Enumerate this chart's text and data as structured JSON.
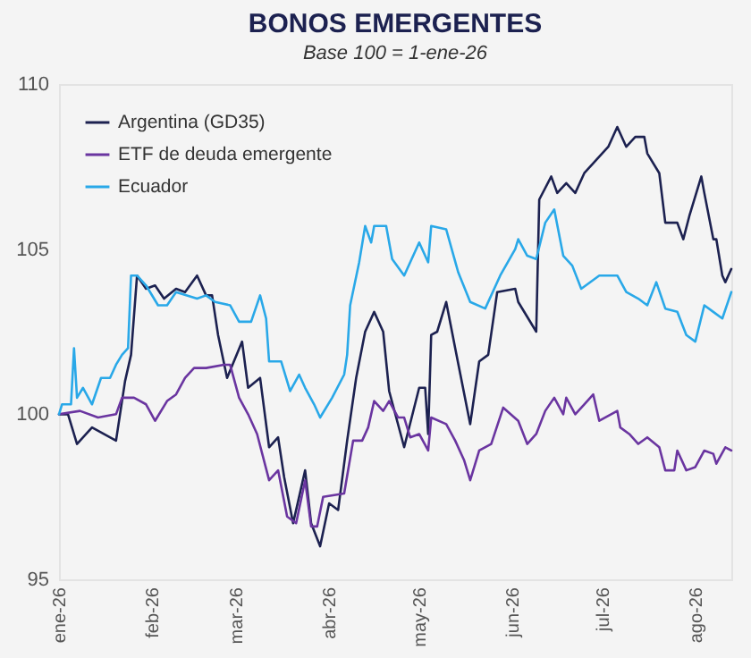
{
  "chart_data": {
    "type": "line",
    "title": "BONOS EMERGENTES",
    "subtitle": "Base 100 = 1-ene-26",
    "xlim": [
      "2026-01-01",
      "2026-08-13"
    ],
    "xticks": [
      {
        "value": "2026-01-01",
        "label": "ene-26"
      },
      {
        "value": "2026-02-01",
        "label": "feb-26"
      },
      {
        "value": "2026-03-01",
        "label": "mar-26"
      },
      {
        "value": "2026-04-01",
        "label": "abr-26"
      },
      {
        "value": "2026-05-01",
        "label": "may-26"
      },
      {
        "value": "2026-06-01",
        "label": "jun-26"
      },
      {
        "value": "2026-07-01",
        "label": "jul-26"
      },
      {
        "value": "2026-08-01",
        "label": "ago-26"
      }
    ],
    "ylim": [
      95,
      110
    ],
    "yticks": [
      95,
      100,
      105,
      110
    ],
    "grid": false,
    "legend": "top left",
    "marker": "none",
    "line_style": "solid",
    "series": [
      {
        "name": "Argentina (GD35)",
        "color": "#1c2150",
        "x": [
          "2026-01-01",
          "2026-01-04",
          "2026-01-07",
          "2026-01-12",
          "2026-01-20",
          "2026-01-23",
          "2026-01-25",
          "2026-01-27",
          "2026-01-30",
          "2026-02-02",
          "2026-02-05",
          "2026-02-09",
          "2026-02-12",
          "2026-02-16",
          "2026-02-19",
          "2026-02-21",
          "2026-02-23",
          "2026-02-26",
          "2026-03-03",
          "2026-03-05",
          "2026-03-09",
          "2026-03-12",
          "2026-03-15",
          "2026-03-17",
          "2026-03-20",
          "2026-03-24",
          "2026-03-26",
          "2026-03-29",
          "2026-04-01",
          "2026-04-04",
          "2026-04-07",
          "2026-04-10",
          "2026-04-13",
          "2026-04-16",
          "2026-04-19",
          "2026-04-21",
          "2026-04-26",
          "2026-05-01",
          "2026-05-03",
          "2026-05-04",
          "2026-05-05",
          "2026-05-07",
          "2026-05-10",
          "2026-05-13",
          "2026-05-18",
          "2026-05-21",
          "2026-05-24",
          "2026-05-27",
          "2026-06-02",
          "2026-06-03",
          "2026-06-09",
          "2026-06-10",
          "2026-06-14",
          "2026-06-16",
          "2026-06-19",
          "2026-06-22",
          "2026-06-25",
          "2026-06-29",
          "2026-07-03",
          "2026-07-06",
          "2026-07-09",
          "2026-07-12",
          "2026-07-15",
          "2026-07-16",
          "2026-07-20",
          "2026-07-22",
          "2026-07-26",
          "2026-07-28",
          "2026-07-30",
          "2026-08-03",
          "2026-08-04",
          "2026-08-07",
          "2026-08-08",
          "2026-08-10",
          "2026-08-11",
          "2026-08-13"
        ],
        "values": [
          100,
          100,
          99.1,
          99.6,
          99.2,
          101.0,
          101.8,
          104.2,
          103.8,
          103.9,
          103.5,
          103.8,
          103.7,
          104.2,
          103.6,
          103.6,
          102.4,
          101.1,
          102.2,
          100.8,
          101.1,
          99.0,
          99.3,
          98.1,
          96.7,
          98.3,
          96.7,
          96.0,
          97.3,
          97.1,
          99.2,
          101.1,
          102.5,
          103.1,
          102.5,
          100.7,
          99.0,
          100.8,
          100.8,
          99.4,
          102.4,
          102.5,
          103.4,
          102.0,
          99.7,
          101.6,
          101.8,
          103.7,
          103.8,
          103.4,
          102.5,
          106.5,
          107.2,
          106.7,
          107.0,
          106.7,
          107.3,
          107.7,
          108.1,
          108.7,
          108.1,
          108.4,
          108.4,
          107.9,
          107.3,
          105.8,
          105.8,
          105.3,
          106.0,
          107.2,
          106.7,
          105.3,
          105.3,
          104.2,
          104.0,
          104.4
        ]
      },
      {
        "name": "ETF de deuda emergente",
        "color": "#6a35a0",
        "x": [
          "2026-01-01",
          "2026-01-08",
          "2026-01-14",
          "2026-01-20",
          "2026-01-22",
          "2026-01-26",
          "2026-01-30",
          "2026-02-02",
          "2026-02-06",
          "2026-02-09",
          "2026-02-12",
          "2026-02-15",
          "2026-02-19",
          "2026-02-25",
          "2026-02-27",
          "2026-03-02",
          "2026-03-05",
          "2026-03-08",
          "2026-03-12",
          "2026-03-15",
          "2026-03-18",
          "2026-03-21",
          "2026-03-24",
          "2026-03-26",
          "2026-03-28",
          "2026-03-30",
          "2026-04-06",
          "2026-04-09",
          "2026-04-12",
          "2026-04-14",
          "2026-04-16",
          "2026-04-19",
          "2026-04-21",
          "2026-04-24",
          "2026-04-26",
          "2026-04-28",
          "2026-05-01",
          "2026-05-04",
          "2026-05-05",
          "2026-05-10",
          "2026-05-13",
          "2026-05-16",
          "2026-05-18",
          "2026-05-21",
          "2026-05-25",
          "2026-05-29",
          "2026-06-03",
          "2026-06-06",
          "2026-06-09",
          "2026-06-12",
          "2026-06-15",
          "2026-06-18",
          "2026-06-19",
          "2026-06-22",
          "2026-06-25",
          "2026-06-28",
          "2026-06-30",
          "2026-07-06",
          "2026-07-07",
          "2026-07-10",
          "2026-07-13",
          "2026-07-16",
          "2026-07-20",
          "2026-07-22",
          "2026-07-25",
          "2026-07-26",
          "2026-07-29",
          "2026-08-01",
          "2026-08-04",
          "2026-08-07",
          "2026-08-08",
          "2026-08-11",
          "2026-08-13"
        ],
        "values": [
          100.0,
          100.1,
          99.9,
          100.0,
          100.5,
          100.5,
          100.3,
          99.8,
          100.4,
          100.6,
          101.1,
          101.4,
          101.4,
          101.5,
          101.5,
          100.5,
          100.0,
          99.4,
          98.0,
          98.3,
          96.9,
          96.7,
          98.0,
          96.6,
          96.6,
          97.5,
          97.6,
          99.2,
          99.2,
          99.6,
          100.4,
          100.1,
          100.4,
          99.9,
          99.9,
          99.3,
          99.4,
          98.9,
          99.9,
          99.7,
          99.2,
          98.6,
          98.0,
          98.9,
          99.1,
          100.2,
          99.8,
          99.1,
          99.4,
          100.1,
          100.5,
          100.0,
          100.5,
          100.0,
          100.3,
          100.6,
          99.8,
          100.1,
          99.6,
          99.4,
          99.1,
          99.3,
          99.0,
          98.3,
          98.3,
          98.9,
          98.3,
          98.4,
          98.9,
          98.8,
          98.5,
          99.0,
          98.9
        ]
      },
      {
        "name": "Ecuador",
        "color": "#29a8e8",
        "x": [
          "2026-01-01",
          "2026-01-02",
          "2026-01-05",
          "2026-01-06",
          "2026-01-07",
          "2026-01-09",
          "2026-01-12",
          "2026-01-15",
          "2026-01-18",
          "2026-01-20",
          "2026-01-22",
          "2026-01-24",
          "2026-01-25",
          "2026-01-27",
          "2026-01-30",
          "2026-02-03",
          "2026-02-06",
          "2026-02-09",
          "2026-02-16",
          "2026-02-19",
          "2026-02-22",
          "2026-02-27",
          "2026-03-02",
          "2026-03-06",
          "2026-03-09",
          "2026-03-11",
          "2026-03-12",
          "2026-03-16",
          "2026-03-19",
          "2026-03-22",
          "2026-03-24",
          "2026-03-27",
          "2026-03-29",
          "2026-04-02",
          "2026-04-06",
          "2026-04-07",
          "2026-04-08",
          "2026-04-11",
          "2026-04-13",
          "2026-04-15",
          "2026-04-16",
          "2026-04-20",
          "2026-04-22",
          "2026-04-26",
          "2026-05-01",
          "2026-05-04",
          "2026-05-05",
          "2026-05-10",
          "2026-05-14",
          "2026-05-18",
          "2026-05-23",
          "2026-05-28",
          "2026-06-02",
          "2026-06-03",
          "2026-06-06",
          "2026-06-09",
          "2026-06-12",
          "2026-06-15",
          "2026-06-18",
          "2026-06-21",
          "2026-06-24",
          "2026-06-30",
          "2026-07-06",
          "2026-07-09",
          "2026-07-13",
          "2026-07-16",
          "2026-07-19",
          "2026-07-22",
          "2026-07-26",
          "2026-07-29",
          "2026-08-01",
          "2026-08-04",
          "2026-08-07",
          "2026-08-10",
          "2026-08-13"
        ],
        "values": [
          100,
          100.3,
          100.3,
          102.0,
          100.5,
          100.8,
          100.3,
          101.1,
          101.1,
          101.5,
          101.8,
          102.0,
          104.2,
          104.2,
          103.9,
          103.3,
          103.3,
          103.7,
          103.5,
          103.6,
          103.4,
          103.3,
          102.8,
          102.8,
          103.6,
          102.9,
          101.6,
          101.6,
          100.7,
          101.2,
          100.8,
          100.3,
          99.9,
          100.5,
          101.2,
          101.8,
          103.3,
          104.6,
          105.7,
          105.2,
          105.7,
          105.7,
          104.7,
          104.2,
          105.2,
          104.6,
          105.7,
          105.6,
          104.3,
          103.4,
          103.2,
          104.2,
          105.0,
          105.3,
          104.8,
          104.7,
          105.8,
          106.2,
          104.8,
          104.5,
          103.8,
          104.2,
          104.2,
          103.7,
          103.5,
          103.3,
          104.0,
          103.2,
          103.1,
          102.4,
          102.2,
          103.3,
          103.1,
          102.9,
          103.7
        ]
      }
    ]
  }
}
